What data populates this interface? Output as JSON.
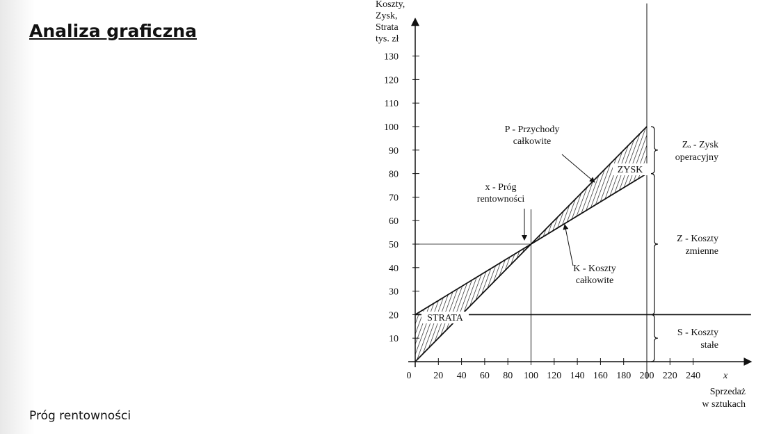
{
  "header": {
    "title": "Analiza graficzna"
  },
  "footer": "Próg  rentowności",
  "chart_data": {
    "type": "line",
    "y_label": [
      "Koszty,",
      "Zysk,",
      "Strata",
      "tys. zł"
    ],
    "x_label": [
      "Sprzedaż",
      "w sztukach"
    ],
    "x_symbol": "x",
    "xlim": [
      0,
      290
    ],
    "ylim": [
      0,
      140
    ],
    "xticks": [
      0,
      20,
      40,
      60,
      80,
      100,
      120,
      140,
      160,
      180,
      200,
      220,
      240
    ],
    "yticks": [
      10,
      20,
      30,
      40,
      50,
      60,
      70,
      80,
      90,
      100,
      110,
      120,
      130
    ],
    "series": [
      {
        "x": [
          0,
          200
        ],
        "values": [
          0,
          100
        ],
        "color": "#111111"
      },
      {
        "x": [
          0,
          200
        ],
        "values": [
          20,
          80
        ],
        "color": "#111111"
      },
      {
        "x": [
          0,
          290
        ],
        "values": [
          20,
          20
        ],
        "color": "#111111"
      }
    ],
    "break_even": {
      "x": 100,
      "y": 50
    },
    "annotations": [
      {
        "lines": [
          "P - Przychody",
          "całkowite"
        ]
      },
      {
        "lines": [
          "x - Próg",
          "rentowności"
        ]
      },
      {
        "lines": [
          "K - Koszty",
          "całkowite"
        ]
      },
      {
        "lines": [
          "ZYSK"
        ]
      },
      {
        "lines": [
          "STRATA"
        ]
      }
    ],
    "braces": [
      {
        "range": [
          80,
          100
        ],
        "lines": [
          "Zₒ - Zysk",
          "operacyjny"
        ]
      },
      {
        "range": [
          20,
          80
        ],
        "lines": [
          "Z - Koszty",
          "zmienne"
        ]
      },
      {
        "range": [
          0,
          20
        ],
        "lines": [
          "S - Koszty",
          "stałe"
        ]
      }
    ]
  }
}
